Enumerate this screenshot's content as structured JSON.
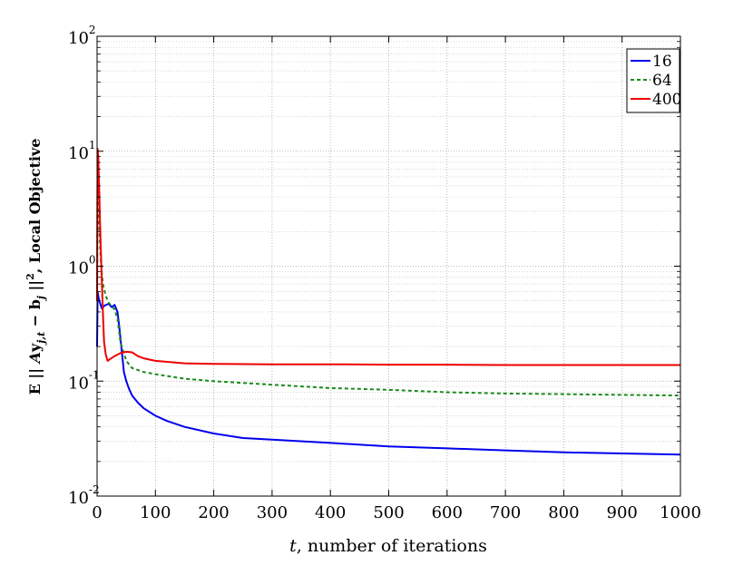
{
  "chart_data": {
    "type": "line",
    "title": "",
    "xlabel": "t, number of iterations",
    "ylabel": "E || Ay_{j,t} − b_j ||², Local Objective",
    "xlim": [
      0,
      1000
    ],
    "ylim": [
      0.01,
      100
    ],
    "yscale": "log",
    "grid": true,
    "legend_position": "top-right",
    "x_ticks": [
      {
        "v": 0,
        "label": "0"
      },
      {
        "v": 100,
        "label": "100"
      },
      {
        "v": 200,
        "label": "200"
      },
      {
        "v": 300,
        "label": "300"
      },
      {
        "v": 400,
        "label": "400"
      },
      {
        "v": 500,
        "label": "500"
      },
      {
        "v": 600,
        "label": "600"
      },
      {
        "v": 700,
        "label": "700"
      },
      {
        "v": 800,
        "label": "800"
      },
      {
        "v": 900,
        "label": "900"
      },
      {
        "v": 1000,
        "label": "1000"
      }
    ],
    "y_ticks": [
      {
        "v": 0.01,
        "base": "10",
        "exp": "-2"
      },
      {
        "v": 0.1,
        "base": "10",
        "exp": "-1"
      },
      {
        "v": 1,
        "base": "10",
        "exp": "0"
      },
      {
        "v": 10,
        "base": "10",
        "exp": "1"
      },
      {
        "v": 100,
        "base": "10",
        "exp": "2"
      }
    ],
    "series": [
      {
        "name": "16",
        "color": "#0000ee",
        "dash": "solid",
        "x": [
          0,
          1,
          3,
          5,
          8,
          12,
          15,
          20,
          25,
          30,
          35,
          38,
          42,
          46,
          50,
          55,
          60,
          70,
          80,
          100,
          120,
          150,
          200,
          250,
          300,
          400,
          500,
          600,
          700,
          800,
          900,
          1000
        ],
        "y": [
          0.2,
          0.6,
          0.52,
          0.48,
          0.43,
          0.45,
          0.46,
          0.47,
          0.44,
          0.46,
          0.4,
          0.3,
          0.19,
          0.12,
          0.1,
          0.085,
          0.075,
          0.065,
          0.058,
          0.05,
          0.045,
          0.04,
          0.035,
          0.032,
          0.031,
          0.029,
          0.027,
          0.026,
          0.025,
          0.024,
          0.0235,
          0.023
        ]
      },
      {
        "name": "64",
        "color": "#1c8a1c",
        "dash": "dashed",
        "x": [
          0,
          1,
          2,
          3,
          5,
          7,
          10,
          15,
          20,
          25,
          30,
          35,
          40,
          50,
          60,
          80,
          100,
          150,
          200,
          300,
          400,
          500,
          600,
          700,
          800,
          900,
          1000
        ],
        "y": [
          0.5,
          8.0,
          5.0,
          3.0,
          1.6,
          1.0,
          0.7,
          0.55,
          0.48,
          0.45,
          0.42,
          0.35,
          0.22,
          0.15,
          0.13,
          0.12,
          0.115,
          0.105,
          0.1,
          0.093,
          0.087,
          0.084,
          0.08,
          0.078,
          0.077,
          0.076,
          0.075
        ]
      },
      {
        "name": "400",
        "color": "#ee0000",
        "dash": "solid",
        "x": [
          0,
          1,
          2,
          3,
          4,
          5,
          6,
          8,
          10,
          12,
          15,
          18,
          22,
          26,
          30,
          40,
          50,
          60,
          70,
          80,
          100,
          150,
          200,
          300,
          400,
          500,
          600,
          700,
          800,
          900,
          1000
        ],
        "y": [
          0.5,
          10.5,
          9.0,
          6.0,
          4.0,
          2.5,
          1.6,
          0.8,
          0.4,
          0.22,
          0.17,
          0.15,
          0.155,
          0.16,
          0.165,
          0.175,
          0.18,
          0.178,
          0.165,
          0.158,
          0.15,
          0.143,
          0.141,
          0.14,
          0.14,
          0.139,
          0.139,
          0.138,
          0.138,
          0.138,
          0.138
        ]
      }
    ]
  }
}
